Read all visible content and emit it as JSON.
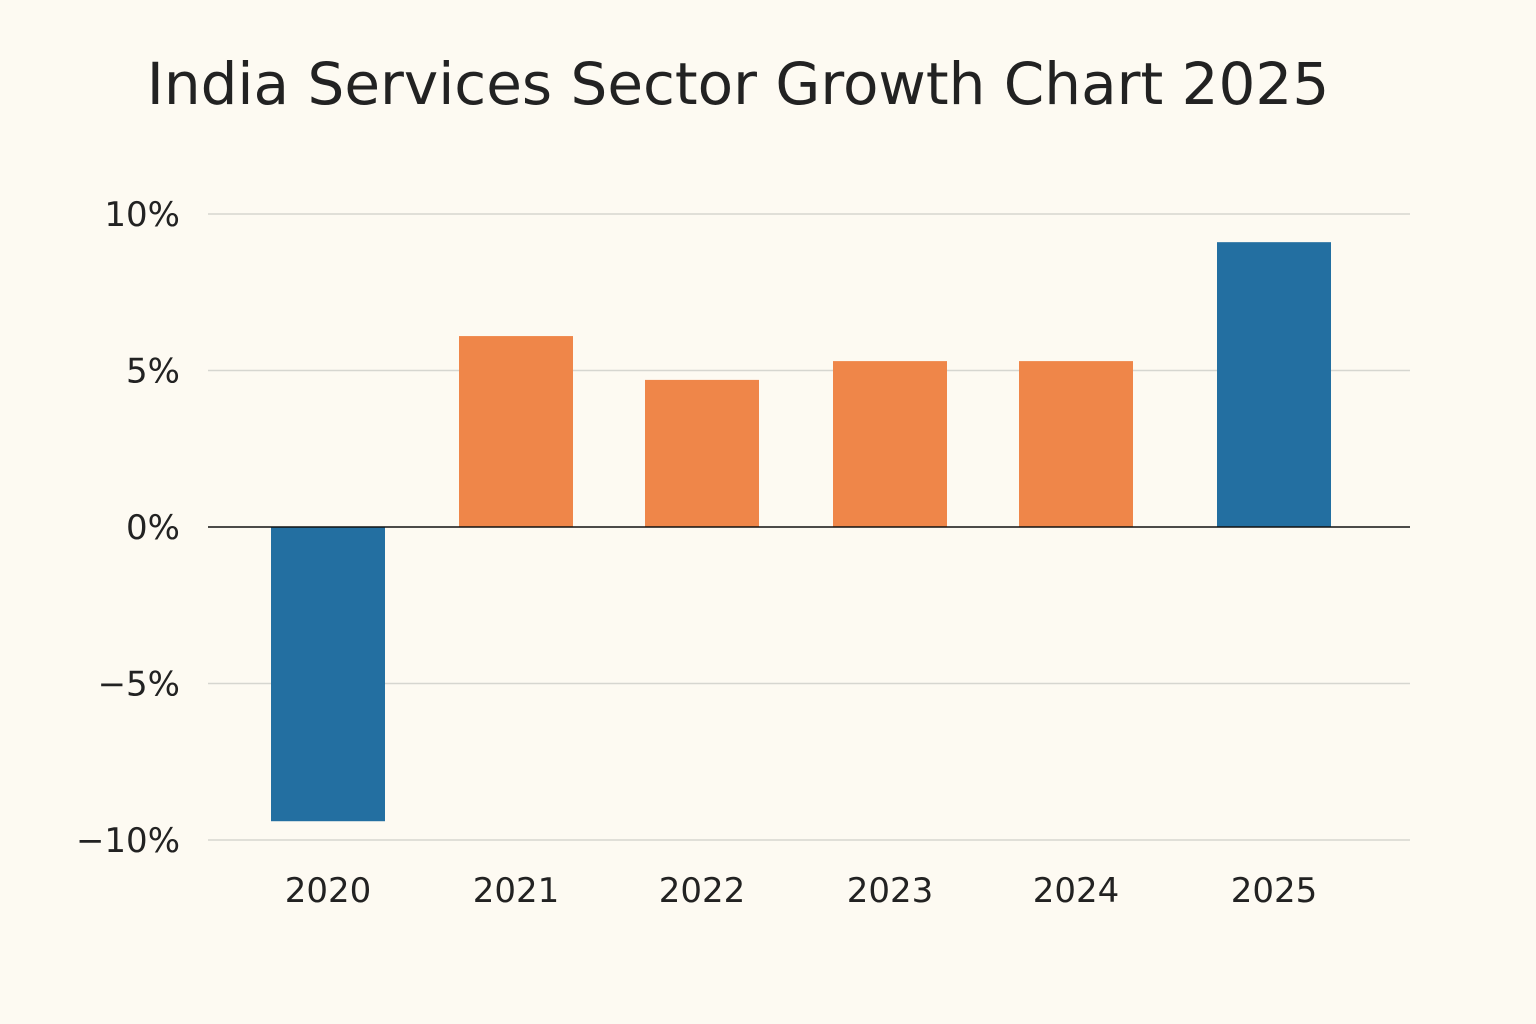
{
  "chart_data": {
    "type": "bar",
    "title": "India Services Sector Growth Chart 2025",
    "xlabel": "",
    "ylabel": "",
    "categories": [
      "2020",
      "2021",
      "2022",
      "2023",
      "2024",
      "2025"
    ],
    "values": [
      -9.4,
      6.1,
      4.7,
      5.3,
      5.3,
      9.1
    ],
    "bar_colors": [
      "#236fa1",
      "#ef8649",
      "#ef8649",
      "#ef8649",
      "#ef8649",
      "#236fa1"
    ],
    "ylim": [
      -10,
      10
    ],
    "yticks": [
      10,
      5,
      0,
      -5,
      -10
    ],
    "ytick_labels": [
      "10%",
      "5%",
      "0%",
      "−5%",
      "−10%"
    ],
    "grid": true,
    "legend": "none",
    "background": "#fdfaf2"
  }
}
